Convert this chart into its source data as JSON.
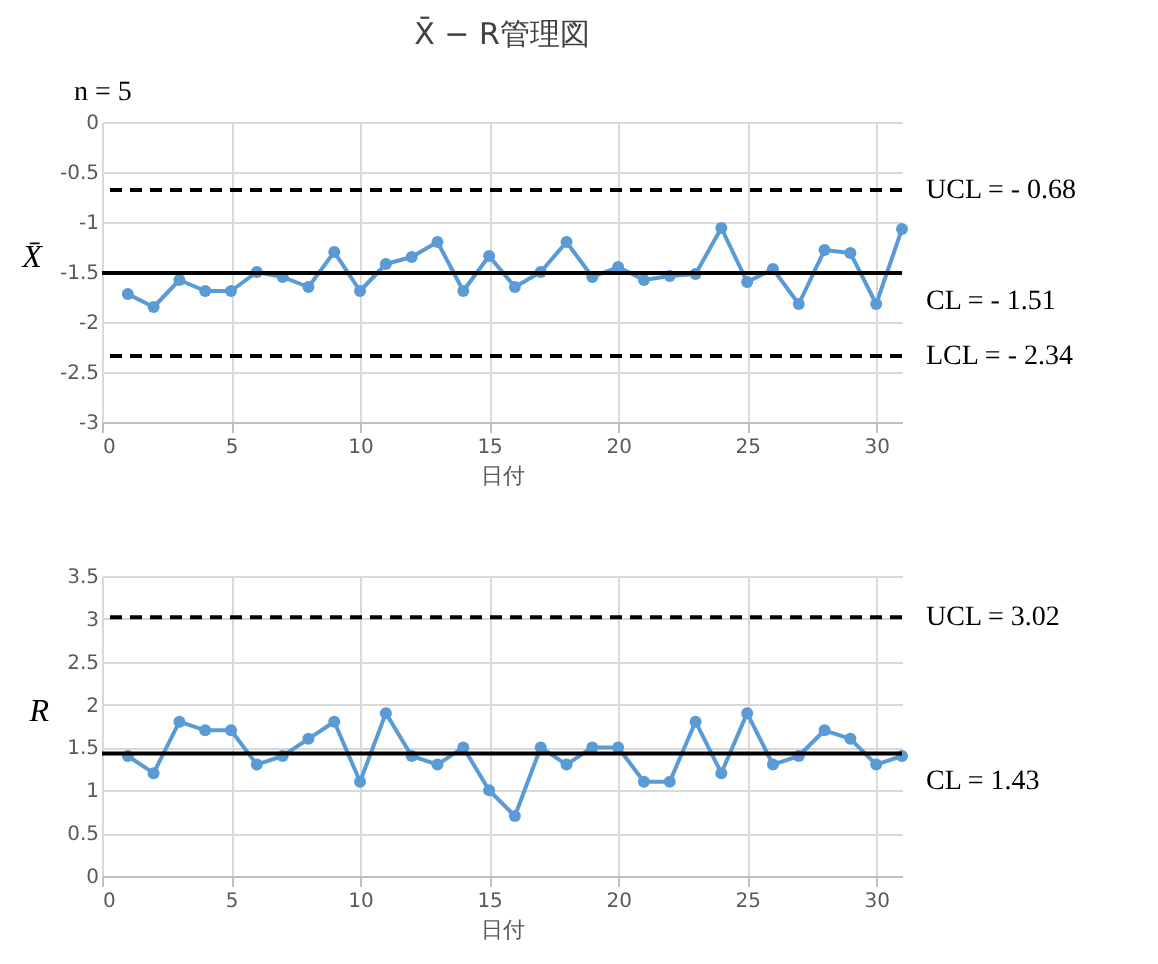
{
  "chart_data": [
    {
      "type": "line",
      "title": "X̄ − R管理図",
      "ylabel": "X̄",
      "xlabel": "日付",
      "annotations": [
        "n = 5"
      ],
      "x": [
        1,
        2,
        3,
        4,
        5,
        6,
        7,
        8,
        9,
        10,
        11,
        12,
        13,
        14,
        15,
        16,
        17,
        18,
        19,
        20,
        21,
        22,
        23,
        24,
        25,
        26,
        27,
        28,
        29,
        30,
        31
      ],
      "series": [
        {
          "color": "#5b9bd5",
          "values": [
            -1.72,
            -1.85,
            -1.58,
            -1.69,
            -1.69,
            -1.5,
            -1.55,
            -1.65,
            -1.3,
            -1.69,
            -1.42,
            -1.35,
            -1.2,
            -1.69,
            -1.34,
            -1.65,
            -1.5,
            -1.2,
            -1.55,
            -1.45,
            -1.58,
            -1.54,
            -1.52,
            -1.06,
            -1.6,
            -1.47,
            -1.82,
            -1.28,
            -1.31,
            -1.82,
            -1.07
          ]
        }
      ],
      "xlim": [
        0,
        31
      ],
      "xticks": [
        0,
        5,
        10,
        15,
        20,
        25,
        30
      ],
      "ylim": [
        -3,
        0
      ],
      "yticks": [
        -3,
        -2.5,
        -2,
        -1.5,
        -1,
        -0.5,
        0
      ],
      "ref_lines": [
        {
          "axis": "y",
          "value": -0.68,
          "label": "UCL =  - 0.68",
          "color": "#000000",
          "line_style": "dashed"
        },
        {
          "axis": "y",
          "value": -1.51,
          "label": "CL =  - 1.51",
          "color": "#000000",
          "line_style": "solid"
        },
        {
          "axis": "y",
          "value": -2.34,
          "label": "LCL =  - 2.34",
          "color": "#000000",
          "line_style": "dashed"
        }
      ],
      "grid": true,
      "marker": "circle",
      "line_style": "solid"
    },
    {
      "type": "line",
      "ylabel": "R",
      "xlabel": "日付",
      "x": [
        1,
        2,
        3,
        4,
        5,
        6,
        7,
        8,
        9,
        10,
        11,
        12,
        13,
        14,
        15,
        16,
        17,
        18,
        19,
        20,
        21,
        22,
        23,
        24,
        25,
        26,
        27,
        28,
        29,
        30,
        31
      ],
      "series": [
        {
          "color": "#5b9bd5",
          "values": [
            1.4,
            1.2,
            1.8,
            1.7,
            1.7,
            1.3,
            1.4,
            1.6,
            1.8,
            1.1,
            1.9,
            1.4,
            1.3,
            1.5,
            1.0,
            0.7,
            1.5,
            1.3,
            1.5,
            1.5,
            1.1,
            1.1,
            1.8,
            1.2,
            1.9,
            1.3,
            1.4,
            1.7,
            1.6,
            1.3,
            1.4
          ]
        }
      ],
      "xlim": [
        0,
        31
      ],
      "xticks": [
        0,
        5,
        10,
        15,
        20,
        25,
        30
      ],
      "ylim": [
        0,
        3.5
      ],
      "yticks": [
        0,
        0.5,
        1,
        1.5,
        2,
        2.5,
        3,
        3.5
      ],
      "ref_lines": [
        {
          "axis": "y",
          "value": 3.02,
          "label": "UCL =  3.02",
          "color": "#000000",
          "line_style": "dashed"
        },
        {
          "axis": "y",
          "value": 1.43,
          "label": "CL =  1.43",
          "color": "#000000",
          "line_style": "solid"
        }
      ],
      "grid": true,
      "marker": "circle",
      "line_style": "solid"
    }
  ]
}
